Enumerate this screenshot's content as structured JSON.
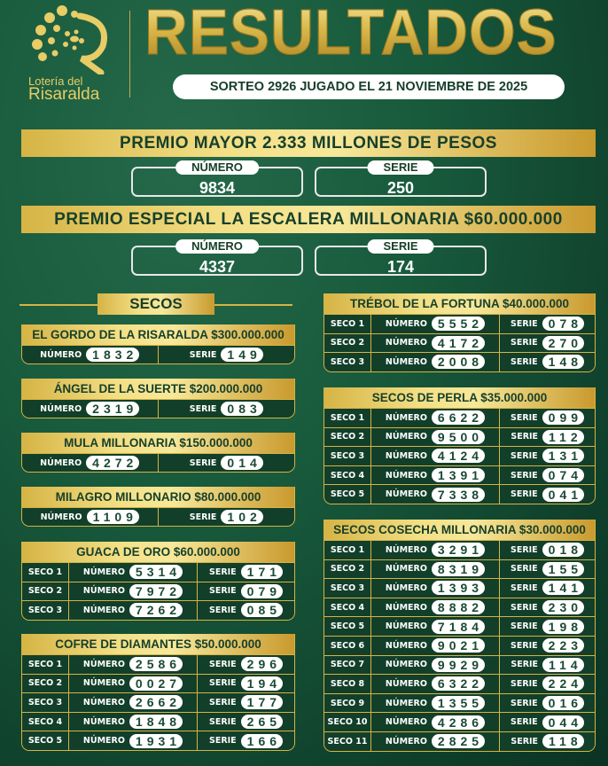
{
  "colors": {
    "background": "#185a3c",
    "gold": "#d6b445",
    "text_dark": "#17402b"
  },
  "header": {
    "logo_line1": "Lotería del",
    "logo_line2": "Risaralda",
    "title": "RESULTADOS",
    "sorteo": "SORTEO 2926 JUGADO EL 21 NOVIEMBRE DE 2025"
  },
  "main_prizes": [
    {
      "title": "PREMIO MAYOR 2.333 MILLONES DE PESOS",
      "numero_label": "NÚMERO",
      "numero": "9834",
      "serie_label": "SERIE",
      "serie": "250"
    },
    {
      "title": "PREMIO ESPECIAL LA ESCALERA MILLONARIA $60.000.000",
      "numero_label": "NÚMERO",
      "numero": "4337",
      "serie_label": "SERIE",
      "serie": "174"
    }
  ],
  "secos_label": "SECOS",
  "labels": {
    "numero": "NÚMERO",
    "serie": "SERIE"
  },
  "simple_secos": [
    {
      "title": "EL GORDO DE LA RISARALDA $300.000.000",
      "numero": "1832",
      "serie": "149"
    },
    {
      "title": "ÁNGEL DE LA SUERTE $200.000.000",
      "numero": "2319",
      "serie": "083"
    },
    {
      "title": "MULA MILLONARIA $150.000.000",
      "numero": "4272",
      "serie": "014"
    },
    {
      "title": "MILAGRO MILLONARIO $80.000.000",
      "numero": "1109",
      "serie": "102"
    }
  ],
  "multi_secos": [
    {
      "title": "GUACA DE ORO $60.000.000",
      "rows": [
        {
          "seco": "SECO 1",
          "numero": "5314",
          "serie": "171"
        },
        {
          "seco": "SECO 2",
          "numero": "7972",
          "serie": "079"
        },
        {
          "seco": "SECO 3",
          "numero": "7262",
          "serie": "085"
        }
      ]
    },
    {
      "title": "COFRE DE DIAMANTES $50.000.000",
      "rows": [
        {
          "seco": "SECO 1",
          "numero": "2586",
          "serie": "296"
        },
        {
          "seco": "SECO 2",
          "numero": "0027",
          "serie": "194"
        },
        {
          "seco": "SECO 3",
          "numero": "2662",
          "serie": "177"
        },
        {
          "seco": "SECO 4",
          "numero": "1848",
          "serie": "265"
        },
        {
          "seco": "SECO 5",
          "numero": "1931",
          "serie": "166"
        }
      ]
    },
    {
      "title": "TRÉBOL DE LA FORTUNA $40.000.000",
      "rows": [
        {
          "seco": "SECO 1",
          "numero": "5552",
          "serie": "078"
        },
        {
          "seco": "SECO 2",
          "numero": "4172",
          "serie": "270"
        },
        {
          "seco": "SECO 3",
          "numero": "2008",
          "serie": "148"
        }
      ]
    },
    {
      "title": "SECOS DE PERLA $35.000.000",
      "rows": [
        {
          "seco": "SECO 1",
          "numero": "6622",
          "serie": "099"
        },
        {
          "seco": "SECO 2",
          "numero": "9500",
          "serie": "112"
        },
        {
          "seco": "SECO 3",
          "numero": "4124",
          "serie": "131"
        },
        {
          "seco": "SECO 4",
          "numero": "1391",
          "serie": "074"
        },
        {
          "seco": "SECO 5",
          "numero": "7338",
          "serie": "041"
        }
      ]
    },
    {
      "title": "SECOS COSECHA MILLONARIA $30.000.000",
      "rows": [
        {
          "seco": "SECO 1",
          "numero": "3291",
          "serie": "018"
        },
        {
          "seco": "SECO 2",
          "numero": "8319",
          "serie": "155"
        },
        {
          "seco": "SECO 3",
          "numero": "1393",
          "serie": "141"
        },
        {
          "seco": "SECO 4",
          "numero": "8882",
          "serie": "230"
        },
        {
          "seco": "SECO 5",
          "numero": "7184",
          "serie": "198"
        },
        {
          "seco": "SECO 6",
          "numero": "9021",
          "serie": "223"
        },
        {
          "seco": "SECO 7",
          "numero": "9929",
          "serie": "114"
        },
        {
          "seco": "SECO 8",
          "numero": "6322",
          "serie": "224"
        },
        {
          "seco": "SECO 9",
          "numero": "1355",
          "serie": "016"
        },
        {
          "seco": "SECO 10",
          "numero": "4286",
          "serie": "044"
        },
        {
          "seco": "SECO 11",
          "numero": "2825",
          "serie": "118"
        }
      ]
    }
  ]
}
